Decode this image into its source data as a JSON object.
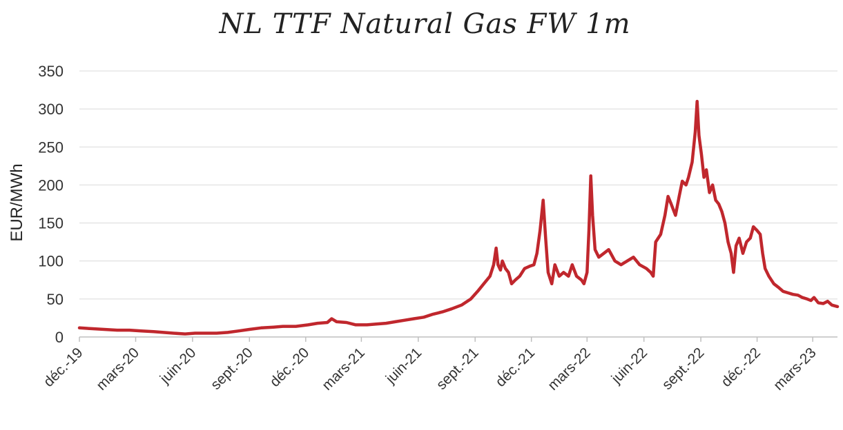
{
  "chart_data": {
    "type": "line",
    "title": "NL TTF Natural Gas FW 1m",
    "xlabel": "",
    "ylabel": "EUR/MWh",
    "ylim": [
      0,
      350
    ],
    "yticks": [
      "0",
      "50",
      "100",
      "150",
      "200",
      "250",
      "300",
      "350"
    ],
    "xlim": [
      "2019-12-01",
      "2023-04-10"
    ],
    "xticks": [
      {
        "date": "2019-12-01",
        "label": "déc.-19"
      },
      {
        "date": "2020-03-01",
        "label": "mars-20"
      },
      {
        "date": "2020-06-01",
        "label": "juin-20"
      },
      {
        "date": "2020-09-01",
        "label": "sept.-20"
      },
      {
        "date": "2020-12-01",
        "label": "déc.-20"
      },
      {
        "date": "2021-03-01",
        "label": "mars-21"
      },
      {
        "date": "2021-06-01",
        "label": "juin-21"
      },
      {
        "date": "2021-09-01",
        "label": "sept.-21"
      },
      {
        "date": "2021-12-01",
        "label": "déc.-21"
      },
      {
        "date": "2022-03-01",
        "label": "mars-22"
      },
      {
        "date": "2022-06-01",
        "label": "juin-22"
      },
      {
        "date": "2022-09-01",
        "label": "sept.-22"
      },
      {
        "date": "2022-12-01",
        "label": "déc.-22"
      },
      {
        "date": "2023-03-01",
        "label": "mars-23"
      }
    ],
    "grid": true,
    "legend": "none",
    "series": [
      {
        "color": "#c0272d",
        "points": [
          [
            "2019-12-01",
            12
          ],
          [
            "2019-12-20",
            11
          ],
          [
            "2020-01-10",
            10
          ],
          [
            "2020-01-31",
            9
          ],
          [
            "2020-02-20",
            9
          ],
          [
            "2020-03-10",
            8
          ],
          [
            "2020-03-30",
            7
          ],
          [
            "2020-04-15",
            6
          ],
          [
            "2020-05-01",
            5
          ],
          [
            "2020-05-20",
            4
          ],
          [
            "2020-06-05",
            5
          ],
          [
            "2020-06-20",
            5
          ],
          [
            "2020-07-10",
            5
          ],
          [
            "2020-07-28",
            6
          ],
          [
            "2020-08-15",
            8
          ],
          [
            "2020-09-01",
            10
          ],
          [
            "2020-09-20",
            12
          ],
          [
            "2020-10-10",
            13
          ],
          [
            "2020-10-25",
            14
          ],
          [
            "2020-11-15",
            14
          ],
          [
            "2020-12-05",
            16
          ],
          [
            "2020-12-20",
            18
          ],
          [
            "2021-01-05",
            19
          ],
          [
            "2021-01-12",
            24
          ],
          [
            "2021-01-20",
            20
          ],
          [
            "2021-02-05",
            19
          ],
          [
            "2021-02-20",
            16
          ],
          [
            "2021-03-10",
            16
          ],
          [
            "2021-03-25",
            17
          ],
          [
            "2021-04-10",
            18
          ],
          [
            "2021-04-25",
            20
          ],
          [
            "2021-05-10",
            22
          ],
          [
            "2021-05-25",
            24
          ],
          [
            "2021-06-10",
            26
          ],
          [
            "2021-06-25",
            30
          ],
          [
            "2021-07-10",
            33
          ],
          [
            "2021-07-25",
            37
          ],
          [
            "2021-08-10",
            42
          ],
          [
            "2021-08-25",
            50
          ],
          [
            "2021-09-05",
            60
          ],
          [
            "2021-09-15",
            70
          ],
          [
            "2021-09-25",
            80
          ],
          [
            "2021-10-01",
            95
          ],
          [
            "2021-10-05",
            117
          ],
          [
            "2021-10-08",
            95
          ],
          [
            "2021-10-12",
            88
          ],
          [
            "2021-10-15",
            100
          ],
          [
            "2021-10-20",
            90
          ],
          [
            "2021-10-25",
            85
          ],
          [
            "2021-10-30",
            70
          ],
          [
            "2021-11-05",
            75
          ],
          [
            "2021-11-12",
            80
          ],
          [
            "2021-11-20",
            90
          ],
          [
            "2021-11-28",
            93
          ],
          [
            "2021-12-05",
            95
          ],
          [
            "2021-12-10",
            110
          ],
          [
            "2021-12-15",
            140
          ],
          [
            "2021-12-20",
            180
          ],
          [
            "2021-12-24",
            130
          ],
          [
            "2021-12-28",
            85
          ],
          [
            "2022-01-03",
            70
          ],
          [
            "2022-01-08",
            95
          ],
          [
            "2022-01-15",
            80
          ],
          [
            "2022-01-22",
            85
          ],
          [
            "2022-01-30",
            80
          ],
          [
            "2022-02-05",
            95
          ],
          [
            "2022-02-12",
            80
          ],
          [
            "2022-02-20",
            75
          ],
          [
            "2022-02-24",
            70
          ],
          [
            "2022-03-01",
            85
          ],
          [
            "2022-03-04",
            140
          ],
          [
            "2022-03-07",
            212
          ],
          [
            "2022-03-10",
            160
          ],
          [
            "2022-03-14",
            115
          ],
          [
            "2022-03-20",
            105
          ],
          [
            "2022-03-28",
            110
          ],
          [
            "2022-04-05",
            115
          ],
          [
            "2022-04-15",
            100
          ],
          [
            "2022-04-25",
            95
          ],
          [
            "2022-05-05",
            100
          ],
          [
            "2022-05-15",
            105
          ],
          [
            "2022-05-25",
            95
          ],
          [
            "2022-06-05",
            90
          ],
          [
            "2022-06-12",
            85
          ],
          [
            "2022-06-16",
            80
          ],
          [
            "2022-06-20",
            125
          ],
          [
            "2022-06-28",
            135
          ],
          [
            "2022-07-05",
            160
          ],
          [
            "2022-07-10",
            185
          ],
          [
            "2022-07-15",
            175
          ],
          [
            "2022-07-22",
            160
          ],
          [
            "2022-07-28",
            185
          ],
          [
            "2022-08-02",
            205
          ],
          [
            "2022-08-08",
            200
          ],
          [
            "2022-08-12",
            210
          ],
          [
            "2022-08-18",
            230
          ],
          [
            "2022-08-23",
            270
          ],
          [
            "2022-08-26",
            310
          ],
          [
            "2022-08-29",
            265
          ],
          [
            "2022-09-02",
            240
          ],
          [
            "2022-09-06",
            210
          ],
          [
            "2022-09-10",
            220
          ],
          [
            "2022-09-15",
            190
          ],
          [
            "2022-09-20",
            200
          ],
          [
            "2022-09-25",
            180
          ],
          [
            "2022-09-30",
            175
          ],
          [
            "2022-10-05",
            165
          ],
          [
            "2022-10-10",
            150
          ],
          [
            "2022-10-15",
            125
          ],
          [
            "2022-10-20",
            110
          ],
          [
            "2022-10-24",
            85
          ],
          [
            "2022-10-28",
            120
          ],
          [
            "2022-11-02",
            130
          ],
          [
            "2022-11-08",
            110
          ],
          [
            "2022-11-14",
            125
          ],
          [
            "2022-11-20",
            130
          ],
          [
            "2022-11-25",
            145
          ],
          [
            "2022-12-01",
            140
          ],
          [
            "2022-12-06",
            135
          ],
          [
            "2022-12-10",
            110
          ],
          [
            "2022-12-14",
            90
          ],
          [
            "2022-12-20",
            80
          ],
          [
            "2022-12-28",
            70
          ],
          [
            "2023-01-05",
            65
          ],
          [
            "2023-01-12",
            60
          ],
          [
            "2023-01-20",
            58
          ],
          [
            "2023-01-28",
            56
          ],
          [
            "2023-02-05",
            55
          ],
          [
            "2023-02-12",
            52
          ],
          [
            "2023-02-20",
            50
          ],
          [
            "2023-02-26",
            48
          ],
          [
            "2023-03-03",
            52
          ],
          [
            "2023-03-10",
            45
          ],
          [
            "2023-03-18",
            44
          ],
          [
            "2023-03-25",
            47
          ],
          [
            "2023-04-01",
            42
          ],
          [
            "2023-04-10",
            40
          ]
        ]
      }
    ]
  }
}
